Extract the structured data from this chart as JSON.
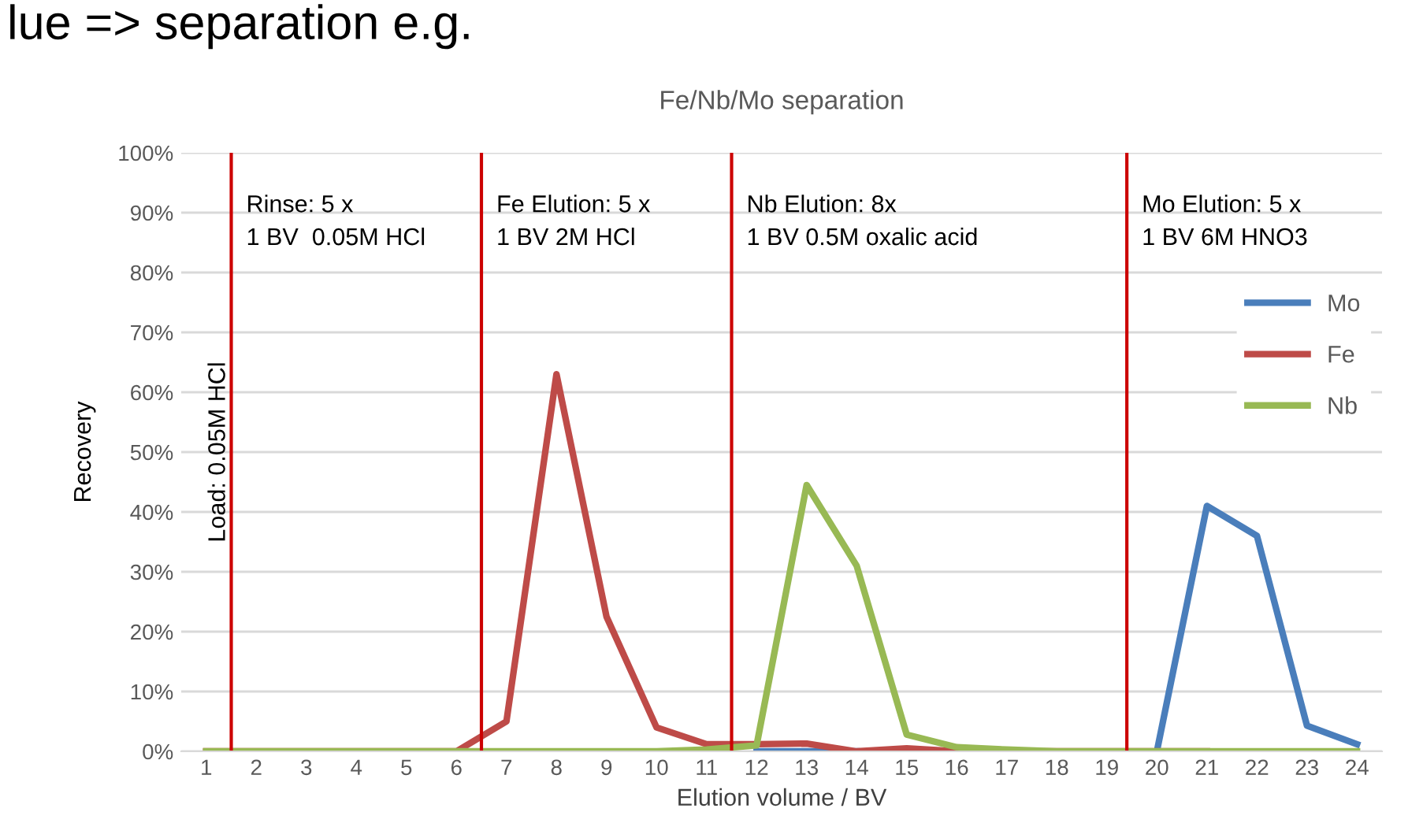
{
  "chart_data": {
    "type": "line",
    "title": "Fe/Nb/Mo separation",
    "xlabel": "Elution volume / BV",
    "ylabel": "Recovery",
    "x": [
      1,
      2,
      3,
      4,
      5,
      6,
      7,
      8,
      9,
      10,
      11,
      12,
      13,
      14,
      15,
      16,
      17,
      18,
      19,
      20,
      21,
      22,
      23,
      24
    ],
    "xlim": [
      0.5,
      24.5
    ],
    "xticks": [
      1,
      2,
      3,
      4,
      5,
      6,
      7,
      8,
      9,
      10,
      11,
      12,
      13,
      14,
      15,
      16,
      17,
      18,
      19,
      20,
      21,
      22,
      23,
      24
    ],
    "ylim": [
      0,
      100
    ],
    "yticks": [
      {
        "value": 0,
        "label": "0%"
      },
      {
        "value": 10,
        "label": "10%"
      },
      {
        "value": 20,
        "label": "20%"
      },
      {
        "value": 30,
        "label": "30%"
      },
      {
        "value": 40,
        "label": "40%"
      },
      {
        "value": 50,
        "label": "50%"
      },
      {
        "value": 60,
        "label": "60%"
      },
      {
        "value": 70,
        "label": "70%"
      },
      {
        "value": 80,
        "label": "80%"
      },
      {
        "value": 90,
        "label": "90%"
      },
      {
        "value": 100,
        "label": "100%"
      }
    ],
    "series": [
      {
        "name": "Mo",
        "color": "#4a7ebb",
        "values": [
          null,
          null,
          null,
          null,
          null,
          null,
          null,
          null,
          null,
          null,
          null,
          0,
          0,
          0,
          null,
          null,
          null,
          null,
          null,
          0,
          41,
          36,
          4.3,
          1.2
        ]
      },
      {
        "name": "Fe",
        "color": "#be4b48",
        "values": [
          0,
          0,
          0,
          0,
          0,
          0,
          5,
          63,
          22.5,
          4,
          1.2,
          1.2,
          1.3,
          0,
          0.5,
          0,
          0,
          0,
          0,
          0,
          0,
          null,
          null,
          null
        ]
      },
      {
        "name": "Nb",
        "color": "#98b954",
        "values": [
          0,
          0,
          0,
          0,
          0,
          0,
          0,
          0,
          0,
          0,
          0.3,
          1,
          44.5,
          31,
          2.8,
          0.7,
          0.3,
          0,
          0,
          0,
          0,
          0,
          0,
          0
        ]
      }
    ],
    "ref_lines": [
      {
        "axis": "x",
        "value": 1.5,
        "color": "#cc0000"
      },
      {
        "axis": "x",
        "value": 6.5,
        "color": "#cc0000"
      },
      {
        "axis": "x",
        "value": 11.5,
        "color": "#cc0000"
      },
      {
        "axis": "x",
        "value": 19.4,
        "color": "#cc0000"
      }
    ],
    "annotations": [
      "Load: 0.05M HCl",
      "Rinse: 5 x\n1 BV  0.05M HCl",
      "Fe Elution: 5 x\n1 BV 2M HCl",
      "Nb Elution: 8x\n1 BV 0.5M oxalic acid",
      "Mo Elution: 5 x\n1 BV 6M HNO3",
      "lue => separation e.g."
    ],
    "grid": "y",
    "legend": "right",
    "line_style": "solid",
    "marker": "none"
  }
}
